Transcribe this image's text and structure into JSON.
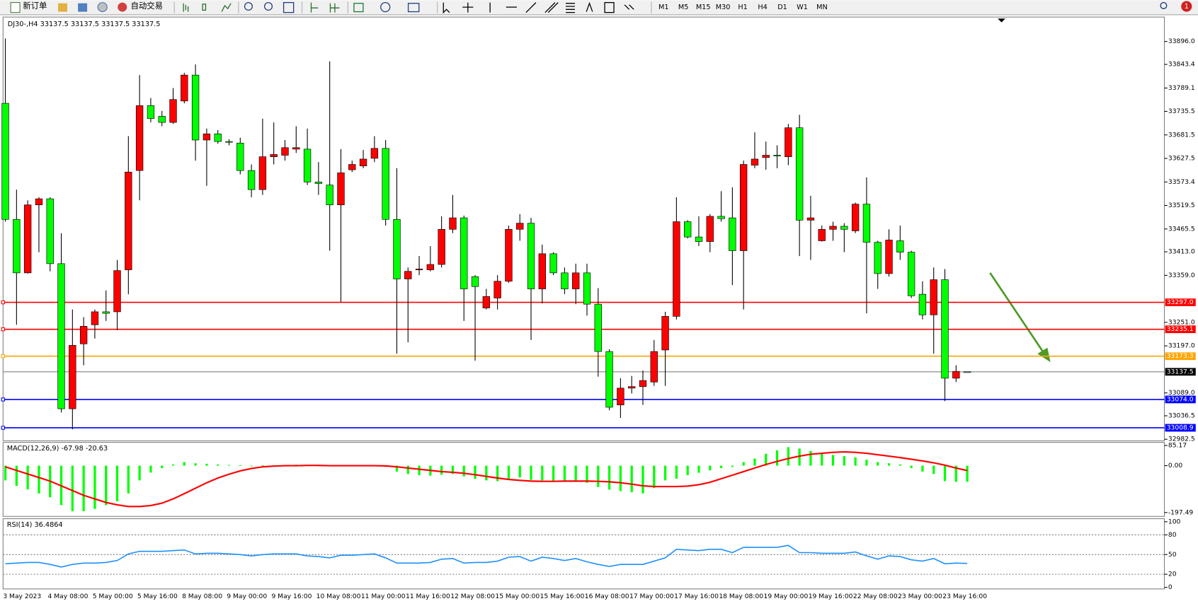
{
  "toolbar": {
    "new_order": "新订单",
    "auto_trading": "自动交易",
    "timeframes": [
      "M1",
      "M5",
      "M15",
      "M30",
      "H1",
      "H4",
      "D1",
      "W1",
      "MN"
    ],
    "notifications": "1"
  },
  "chart_data": [
    {
      "type": "candlestick",
      "symbol": "DJ30-,H4",
      "categories": [
        "3 May 2023",
        null,
        null,
        null,
        "4 May 08:00",
        null,
        null,
        null,
        "5 May 00:00",
        null,
        null,
        null,
        "5 May 16:00",
        null,
        null,
        null,
        "8 May 08:00",
        null,
        null,
        null,
        "9 May 00:00",
        null,
        null,
        null,
        "9 May 16:00",
        null,
        null,
        null,
        "10 May 08:00",
        null,
        null,
        null,
        "11 May 00:00",
        null,
        null,
        null,
        "11 May 16:00",
        null,
        null,
        null,
        "12 May 08:00",
        null,
        null,
        null,
        "15 May 00:00",
        null,
        null,
        null,
        "15 May 16:00",
        null,
        null,
        null,
        "16 May 08:00",
        null,
        null,
        null,
        "17 May 00:00",
        null,
        null,
        null,
        "17 May 16:00",
        null,
        null,
        null,
        "18 May 08:00",
        null,
        null,
        null,
        "19 May 00:00",
        null,
        null,
        null,
        "19 May 16:00",
        null,
        null,
        null,
        "22 May 08:00",
        null,
        null,
        null,
        "23 May 00:00",
        null,
        null,
        null,
        "23 May 16:00",
        null,
        null
      ],
      "open": [
        33754.0,
        33487.5,
        33364.7,
        33520.8,
        33534.8,
        33385.8,
        33052.6,
        33201.7,
        33245.5,
        33275.3,
        33275.3,
        33371.7,
        33599.7,
        33748.7,
        33724.2,
        33710.2,
        33759.3,
        33818.9,
        33669.8,
        33683.9,
        33666.3,
        33662.8,
        33599.7,
        33555.9,
        33631.3,
        33634.8,
        33648.8,
        33648.8,
        33573.4,
        33566.4,
        33520.8,
        33601.4,
        33610.2,
        33627.8,
        33650.5,
        33487.5,
        33350.7,
        33371.7,
        33371.7,
        33384.0,
        33464.7,
        33491.0,
        33356.0,
        33284.1,
        33306.9,
        33345.4,
        33464.7,
        33478.7,
        33327.9,
        33408.6,
        33364.7,
        33327.9,
        33364.7,
        33292.8,
        33184.1,
        33061.4,
        33100.0,
        33103.5,
        33114.0,
        33187.6,
        33264.8,
        33482.2,
        33447.1,
        33436.6,
        33494.5,
        33491.0,
        33415.6,
        33612.0,
        33629.5,
        33634.8,
        33631.3,
        33697.9,
        33485.7,
        33438.4,
        33464.7,
        33471.7,
        33461.2,
        33522.5,
        33434.9,
        33363.0,
        33438.4,
        33412.1,
        33315.6,
        33268.3,
        33349.0,
        33122.8,
        33137.5
      ],
      "high": [
        33903.0,
        33555.9,
        33531.3,
        33538.3,
        33538.3,
        33455.9,
        33280.6,
        33263.0,
        33280.6,
        33324.4,
        33394.5,
        33678.6,
        33818.9,
        33766.3,
        33736.5,
        33789.1,
        33824.1,
        33843.4,
        33696.1,
        33692.6,
        33671.6,
        33675.1,
        33613.7,
        33718.9,
        33710.2,
        33669.8,
        33701.4,
        33696.1,
        33619.0,
        33850.4,
        33648.8,
        33622.5,
        33647.0,
        33678.6,
        33669.8,
        33605.0,
        33377.0,
        33403.3,
        33426.1,
        33494.5,
        33543.6,
        33496.2,
        33359.5,
        33327.9,
        33359.5,
        33473.4,
        33499.7,
        33491.0,
        33429.6,
        33412.1,
        33377.0,
        33385.8,
        33385.8,
        33329.7,
        33189.4,
        33122.8,
        33128.0,
        33140.3,
        33210.4,
        33275.3,
        33538.3,
        33485.7,
        33494.5,
        33499.7,
        33552.3,
        33561.1,
        33622.5,
        33687.4,
        33666.3,
        33657.6,
        33706.6,
        33727.7,
        33541.8,
        33473.4,
        33482.2,
        33478.7,
        33526.0,
        33583.9,
        33438.4,
        33464.7,
        33473.4,
        33415.6,
        33345.4,
        33377.0,
        33373.5,
        33152.6,
        33137.5
      ],
      "low": [
        33482.2,
        33245.5,
        33363.0,
        33412.1,
        33368.2,
        33043.9,
        33005.3,
        33152.6,
        33213.9,
        33254.3,
        33233.2,
        33315.6,
        33531.3,
        33710.2,
        33701.4,
        33706.6,
        33754.0,
        33622.5,
        33564.6,
        33661.1,
        33657.6,
        33590.9,
        33538.3,
        33543.6,
        33613.7,
        33622.5,
        33640.0,
        33566.4,
        33543.6,
        33415.6,
        33298.1,
        33596.2,
        33605.0,
        33619.0,
        33473.4,
        33178.9,
        33205.2,
        33359.5,
        33368.2,
        33377.0,
        33455.9,
        33254.3,
        33163.1,
        33280.6,
        33280.6,
        33341.9,
        33438.4,
        33210.4,
        33294.6,
        33359.5,
        33315.6,
        33292.8,
        33266.5,
        33126.3,
        33049.1,
        33031.6,
        33087.7,
        33061.4,
        33105.2,
        33105.2,
        33257.8,
        33443.6,
        33426.1,
        33412.1,
        33482.2,
        33336.7,
        33280.6,
        33605.0,
        33601.4,
        33605.0,
        33612.0,
        33403.3,
        33394.5,
        33436.6,
        33438.4,
        33412.1,
        33455.9,
        33271.8,
        33327.9,
        33356.0,
        33394.5,
        33306.9,
        33257.8,
        33178.9,
        33070.2,
        33114.0,
        33137.5
      ],
      "close": [
        33487.5,
        33364.7,
        33520.8,
        33534.8,
        33385.8,
        33052.6,
        33198.2,
        33242.0,
        33275.3,
        33271.8,
        33370.0,
        33596.2,
        33748.7,
        33718.9,
        33710.2,
        33762.8,
        33818.9,
        33669.8,
        33683.9,
        33666.3,
        33664.6,
        33599.7,
        33555.9,
        33631.3,
        33636.5,
        33652.3,
        33652.3,
        33573.4,
        33569.9,
        33520.8,
        33594.4,
        33613.7,
        33626.0,
        33650.5,
        33487.5,
        33350.7,
        33368.2,
        33373.5,
        33384.0,
        33464.7,
        33491.0,
        33327.9,
        33333.2,
        33310.4,
        33345.4,
        33464.7,
        33478.7,
        33327.9,
        33408.6,
        33364.7,
        33327.9,
        33364.7,
        33292.8,
        33184.1,
        33056.1,
        33100.0,
        33103.5,
        33117.5,
        33184.1,
        33264.8,
        33482.2,
        33447.1,
        33436.6,
        33494.5,
        33489.2,
        33415.6,
        33613.7,
        33626.0,
        33634.8,
        33633.0,
        33697.9,
        33485.7,
        33491.0,
        33464.7,
        33471.7,
        33464.7,
        33522.5,
        33434.9,
        33363.0,
        33440.1,
        33412.1,
        33312.1,
        33268.3,
        33349.0,
        33122.8,
        33138.5,
        33137.5
      ],
      "up_color": "#ff0000",
      "down_color": "#00ff00",
      "ylim": [
        32979.0,
        33952.1
      ],
      "yticks": [
        {
          "value": 33896,
          "label": "33896.0"
        },
        33843.4,
        33789.1,
        33735.5,
        33681.5,
        33627.5,
        33573.4,
        33519.5,
        33465.5,
        {
          "value": 33413,
          "label": "33413.0"
        },
        {
          "value": 33359,
          "label": "33359.0"
        },
        {
          "value": 33251,
          "label": "33251.0"
        },
        {
          "value": 33197,
          "label": "33197.0"
        },
        {
          "value": 33089,
          "label": "33089.0"
        },
        33036.5,
        32982.5
      ],
      "levels": [
        {
          "value": 33297,
          "label": "33297.0",
          "color": "#ff0000"
        },
        {
          "value": 33235.1,
          "label": "33235.1",
          "color": "#ff0000"
        },
        {
          "value": 33173.3,
          "label": "33173.3",
          "color": "#ffa500"
        },
        {
          "value": 33074,
          "label": "33074.0",
          "color": "#0000ff"
        },
        {
          "value": 33008.9,
          "label": "33008.9",
          "color": "#0000ff"
        }
      ]
    },
    {
      "type": "macd",
      "title": "MACD(12,26,9)",
      "values": [
        -62,
        -85,
        -100,
        -117,
        -133,
        -166,
        -192,
        -192,
        -182,
        -166,
        -150,
        -117,
        -62,
        -29,
        -10,
        5,
        15,
        10,
        8,
        5,
        3,
        2,
        0,
        2,
        2,
        3,
        4,
        2,
        0,
        -2,
        -1,
        0,
        1,
        2,
        -5,
        -25,
        -35,
        -40,
        -42,
        -38,
        -35,
        -45,
        -55,
        -62,
        -65,
        -55,
        -50,
        -60,
        -62,
        -65,
        -68,
        -68,
        -72,
        -90,
        -101,
        -107,
        -112,
        -117,
        -94,
        -62,
        -55,
        -40,
        -30,
        -20,
        -10,
        -5,
        15,
        30,
        50,
        65,
        78,
        72,
        62,
        55,
        45,
        40,
        35,
        25,
        15,
        10,
        5,
        -10,
        -25,
        -35,
        -65,
        -68,
        -67.98
      ],
      "signal": [
        -5,
        -20,
        -35,
        -50,
        -65,
        -85,
        -105,
        -125,
        -140,
        -155,
        -165,
        -172,
        -172,
        -168,
        -158,
        -140,
        -118,
        -95,
        -72,
        -52,
        -36,
        -22,
        -12,
        -5,
        -2,
        0,
        0,
        1,
        1,
        0,
        0,
        0,
        0,
        0,
        -1,
        -5,
        -10,
        -15,
        -20,
        -25,
        -28,
        -32,
        -38,
        -45,
        -52,
        -58,
        -62,
        -65,
        -66,
        -66,
        -65,
        -65,
        -65,
        -66,
        -68,
        -72,
        -78,
        -85,
        -88,
        -88,
        -88,
        -86,
        -80,
        -70,
        -55,
        -40,
        -25,
        -10,
        5,
        18,
        30,
        40,
        48,
        52,
        56,
        58,
        56,
        52,
        46,
        40,
        34,
        27,
        20,
        12,
        2,
        -10,
        -20.63
      ],
      "color": "#00ff00",
      "signal_color": "#ff0000",
      "ylim": [
        -213.7,
        98.2
      ],
      "yticks": [
        85.17,
        {
          "value": 0,
          "label": "0.00"
        },
        -197.49
      ]
    },
    {
      "type": "line",
      "title": "RSI(14)",
      "values": [
        36,
        37,
        38,
        38,
        35,
        31,
        35,
        37,
        37,
        38,
        41,
        51,
        55,
        55,
        55,
        56,
        57,
        51,
        52,
        52,
        51,
        50,
        48,
        50,
        51,
        51,
        51,
        48,
        47,
        45,
        49,
        49,
        50,
        51,
        45,
        37,
        37,
        37,
        38,
        43,
        44,
        37,
        38,
        38,
        40,
        46,
        47,
        40,
        46,
        44,
        41,
        44,
        39,
        35,
        32,
        35,
        35,
        35,
        40,
        45,
        58,
        57,
        56,
        58,
        58,
        53,
        61,
        61,
        61,
        61,
        64,
        53,
        53,
        52,
        52,
        52,
        54,
        48,
        43,
        48,
        47,
        42,
        40,
        44,
        36,
        37,
        36.4864
      ],
      "color": "#1e90ff",
      "ylim": [
        0,
        100
      ],
      "yticks": [
        100,
        80,
        50,
        20,
        0
      ]
    }
  ]
}
